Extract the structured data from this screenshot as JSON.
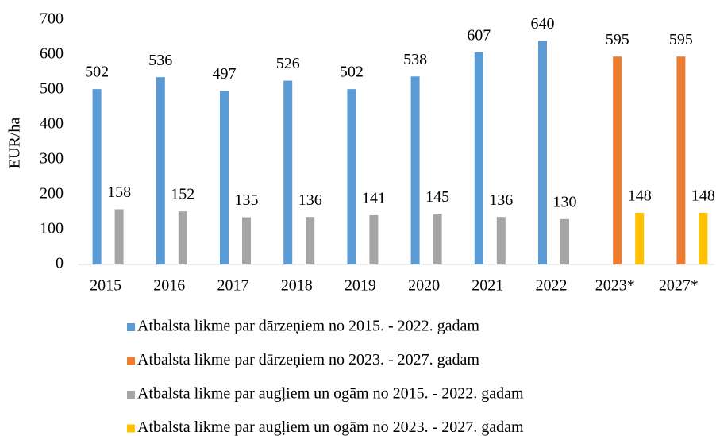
{
  "chart_data": {
    "type": "bar",
    "y_label": "EUR/ha",
    "categories": [
      "2015",
      "2016",
      "2017",
      "2018",
      "2019",
      "2020",
      "2021",
      "2022",
      "2023*",
      "2027*"
    ],
    "series": [
      {
        "name": "Atbalsta likme par dārzeņiem no 2015. - 2022. gadam",
        "color": "#5b9bd5",
        "values": [
          502,
          536,
          497,
          526,
          502,
          538,
          607,
          640,
          null,
          null
        ]
      },
      {
        "name": "Atbalsta likme par dārzeņiem no 2023. - 2027. gadam",
        "color": "#ed7d31",
        "values": [
          null,
          null,
          null,
          null,
          null,
          null,
          null,
          null,
          595,
          595
        ]
      },
      {
        "name": "Atbalsta likme par augļiem un ogām no 2015. - 2022. gadam",
        "color": "#a5a5a5",
        "values": [
          158,
          152,
          135,
          136,
          141,
          145,
          136,
          130,
          null,
          null
        ]
      },
      {
        "name": "Atbalsta likme par augļiem un ogām no 2023. - 2027. gadam",
        "color": "#ffc000",
        "values": [
          null,
          null,
          null,
          null,
          null,
          null,
          null,
          null,
          148,
          148
        ]
      }
    ],
    "ylim": [
      0,
      700
    ],
    "yticks": [
      0,
      100,
      200,
      300,
      400,
      500,
      600,
      700
    ],
    "grid": false
  }
}
